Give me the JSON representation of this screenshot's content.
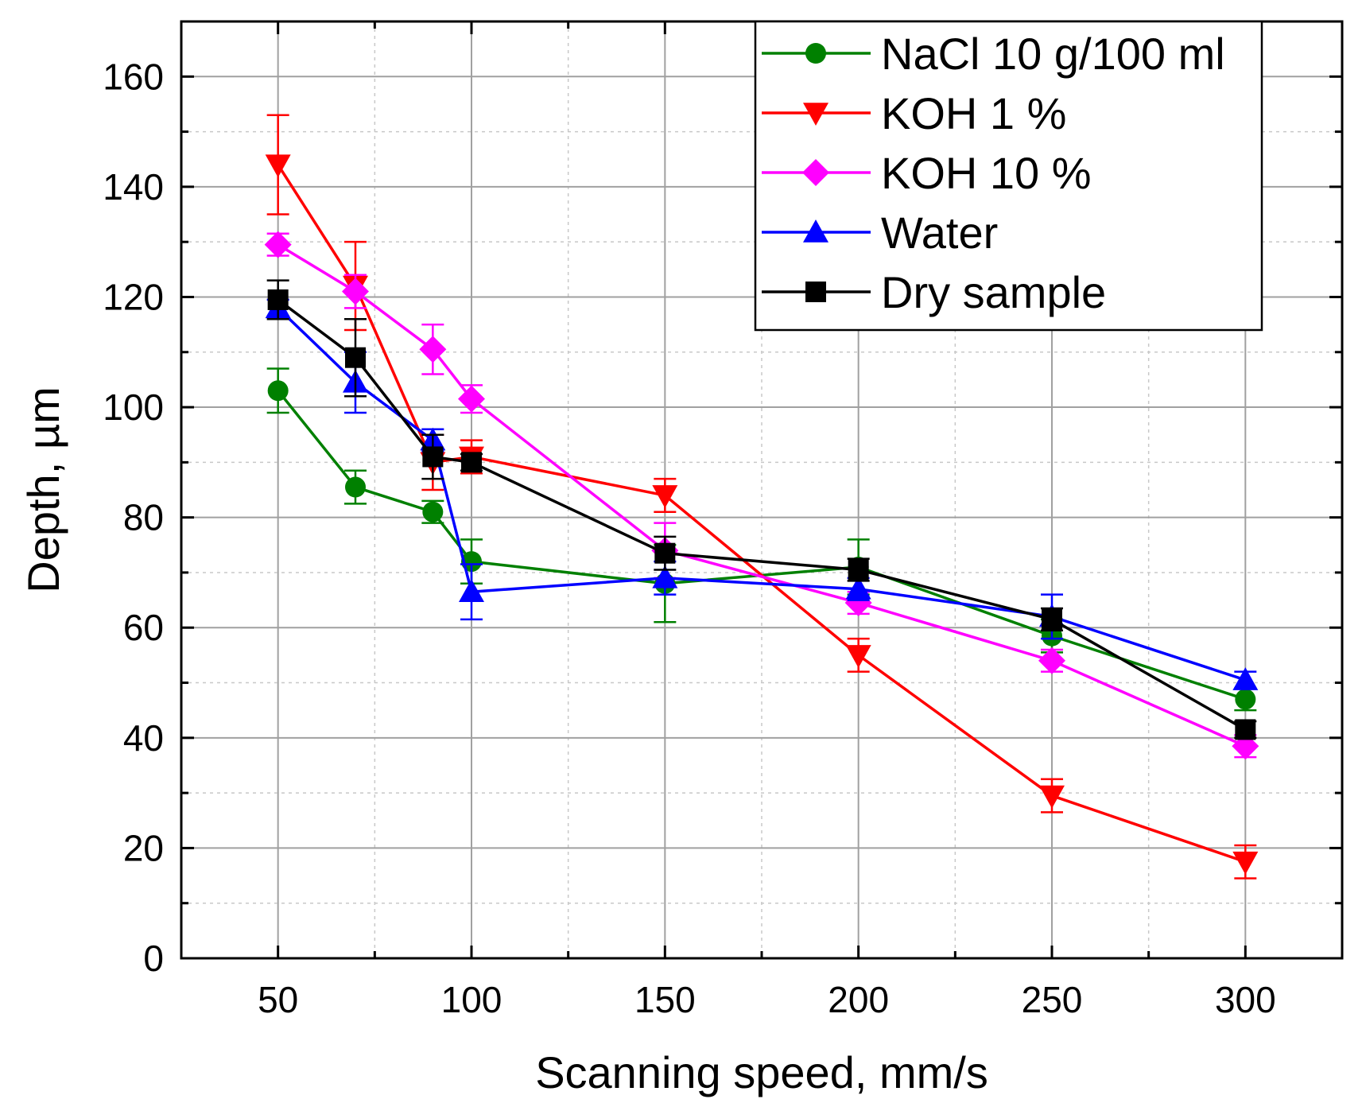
{
  "chart_data": {
    "type": "line",
    "title": "",
    "xlabel": "Scanning speed, mm/s",
    "ylabel": "Depth, µm",
    "xlim": [
      25,
      325
    ],
    "ylim": [
      0,
      170
    ],
    "x_ticks": [
      50,
      100,
      150,
      200,
      250,
      300
    ],
    "y_ticks": [
      0,
      20,
      40,
      60,
      80,
      100,
      120,
      140,
      160
    ],
    "grid": true,
    "legend_position": "top-right",
    "series": [
      {
        "name": "NaCl 10 g/100 ml",
        "color": "#008000",
        "marker": "circle",
        "points": [
          {
            "x": 50,
            "y": 103,
            "err": 4
          },
          {
            "x": 70,
            "y": 85.5,
            "err": 3
          },
          {
            "x": 90,
            "y": 81,
            "err": 2
          },
          {
            "x": 100,
            "y": 72,
            "err": 4
          },
          {
            "x": 150,
            "y": 68,
            "err": 7
          },
          {
            "x": 200,
            "y": 71,
            "err": 5
          },
          {
            "x": 250,
            "y": 58.5,
            "err": 3
          },
          {
            "x": 300,
            "y": 47,
            "err": 2
          }
        ]
      },
      {
        "name": "KOH 1 %",
        "color": "#ff0000",
        "marker": "triangle-down",
        "points": [
          {
            "x": 50,
            "y": 144,
            "err": 9
          },
          {
            "x": 70,
            "y": 122,
            "err": 8
          },
          {
            "x": 90,
            "y": 90,
            "err": 5
          },
          {
            "x": 100,
            "y": 91,
            "err": 3
          },
          {
            "x": 150,
            "y": 84,
            "err": 3
          },
          {
            "x": 200,
            "y": 55,
            "err": 3
          },
          {
            "x": 250,
            "y": 29.5,
            "err": 3
          },
          {
            "x": 300,
            "y": 17.5,
            "err": 3
          }
        ]
      },
      {
        "name": "KOH 10 %",
        "color": "#ff00ff",
        "marker": "diamond",
        "points": [
          {
            "x": 50,
            "y": 129.5,
            "err": 2
          },
          {
            "x": 70,
            "y": 121,
            "err": 3
          },
          {
            "x": 90,
            "y": 110.5,
            "err": 4.5
          },
          {
            "x": 100,
            "y": 101.5,
            "err": 2.5
          },
          {
            "x": 150,
            "y": 74,
            "err": 5
          },
          {
            "x": 200,
            "y": 64.5,
            "err": 2
          },
          {
            "x": 250,
            "y": 54,
            "err": 2
          },
          {
            "x": 300,
            "y": 38.5,
            "err": 2
          }
        ]
      },
      {
        "name": "Water",
        "color": "#0000ff",
        "marker": "triangle-up",
        "points": [
          {
            "x": 50,
            "y": 118,
            "err": 1.5
          },
          {
            "x": 70,
            "y": 104.5,
            "err": 5.5
          },
          {
            "x": 90,
            "y": 94,
            "err": 2
          },
          {
            "x": 100,
            "y": 66.5,
            "err": 5
          },
          {
            "x": 150,
            "y": 69,
            "err": 3
          },
          {
            "x": 200,
            "y": 67,
            "err": 2
          },
          {
            "x": 250,
            "y": 62,
            "err": 4
          },
          {
            "x": 300,
            "y": 50.5,
            "err": 1.5
          }
        ]
      },
      {
        "name": "Dry sample",
        "color": "#000000",
        "marker": "square",
        "points": [
          {
            "x": 50,
            "y": 119.5,
            "err": 3.5
          },
          {
            "x": 70,
            "y": 109,
            "err": 7
          },
          {
            "x": 90,
            "y": 91,
            "err": 4
          },
          {
            "x": 100,
            "y": 90,
            "err": 1.5
          },
          {
            "x": 150,
            "y": 73.5,
            "err": 3
          },
          {
            "x": 200,
            "y": 70.5,
            "err": 2
          },
          {
            "x": 250,
            "y": 61.5,
            "err": 2
          },
          {
            "x": 300,
            "y": 41.5,
            "err": 1.5
          }
        ]
      }
    ]
  }
}
